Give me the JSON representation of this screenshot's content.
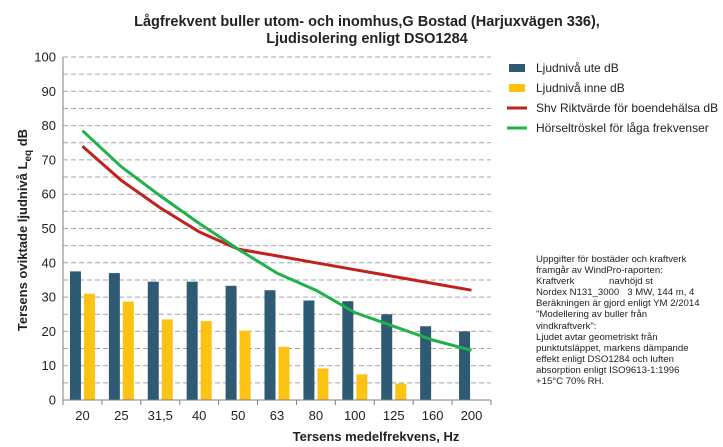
{
  "chart_data": {
    "type": "bar",
    "title_lines": [
      "Lågfrekvent buller utom- och inomhus,G Bostad (Harjuxvägen 336),",
      "Ljudisolering enligt DSO1284"
    ],
    "xlabel": "Tersens medelfrekvens, Hz",
    "ylabel_main": "Tersens oviktade ljudnivå L",
    "ylabel_sub": "eq",
    "ylabel_unit": " dB",
    "categories": [
      "20",
      "25",
      "31,5",
      "40",
      "50",
      "63",
      "80",
      "100",
      "125",
      "160",
      "200"
    ],
    "ylim": [
      0,
      100
    ],
    "yticks": [
      "0",
      "10",
      "20",
      "30",
      "40",
      "50",
      "60",
      "70",
      "80",
      "90",
      "100"
    ],
    "grid": "dashed horizontal at 5 dB steps",
    "legend_position": "right",
    "series": [
      {
        "name": "Ljudnivå ute dB",
        "kind": "bar",
        "color": "#2e5a74",
        "values": [
          37.5,
          37,
          34.5,
          34.5,
          33.3,
          32,
          29,
          28.8,
          25,
          21.5,
          20
        ]
      },
      {
        "name": "Ljudnivå inne dB",
        "kind": "bar",
        "color": "#fcc314",
        "values": [
          31,
          28.7,
          23.5,
          23,
          20.2,
          15.5,
          9.2,
          7.5,
          4.8,
          0,
          0
        ]
      },
      {
        "name": "Shv Riktvärde för boendehälsa dB",
        "kind": "line",
        "color": "#c0211c",
        "values": [
          74,
          64,
          56,
          49,
          44,
          42,
          40,
          38,
          36,
          34,
          32
        ]
      },
      {
        "name": "Hörseltröskel för låga frekvenser",
        "kind": "line",
        "color": "#1fb24a",
        "values": [
          78.5,
          68,
          59.5,
          51.5,
          44,
          37,
          32,
          25.5,
          21.5,
          17.5,
          14.5
        ]
      }
    ]
  },
  "notes": [
    "Uppgifter för bostäder och kraftverk",
    "framgår av WindPro-raporten:",
    "Kraftverk             navhöjd st",
    "Nordex N131_3000   3 MW, 144 m, 4",
    "Beräkningen är gjord enligt YM 2/2014",
    "\"Modellering av buller från",
    "vindkraftverk\":",
    "Ljudet avtar geometriskt från",
    "punktutsläppet, markens dämpande",
    "effekt enligt DSO1284 och luften",
    "absorption enligt ISO9613-1:1996",
    "+15°C 70% RH."
  ]
}
